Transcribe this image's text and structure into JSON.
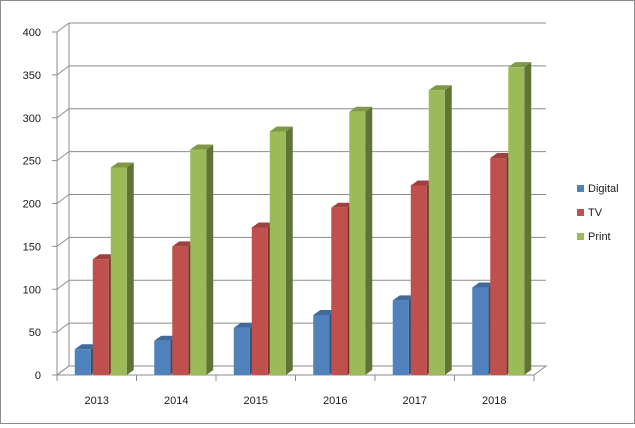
{
  "chart_data": {
    "type": "bar",
    "categories": [
      "2013",
      "2014",
      "2015",
      "2016",
      "2017",
      "2018"
    ],
    "series": [
      {
        "name": "Digital",
        "color": "#4f81bd",
        "values": [
          30,
          40,
          55,
          70,
          87,
          102
        ]
      },
      {
        "name": "TV",
        "color": "#c0504d",
        "values": [
          135,
          150,
          172,
          195,
          221,
          253
        ]
      },
      {
        "name": "Print",
        "color": "#9bbb59",
        "values": [
          242,
          263,
          284,
          307,
          332,
          359
        ]
      }
    ],
    "ylim": [
      0,
      400
    ],
    "yticks": [
      "0",
      "50",
      "100",
      "150",
      "200",
      "250",
      "300",
      "350",
      "400"
    ],
    "grid": true,
    "legend_position": "right",
    "style": "3d-clustered-column"
  }
}
